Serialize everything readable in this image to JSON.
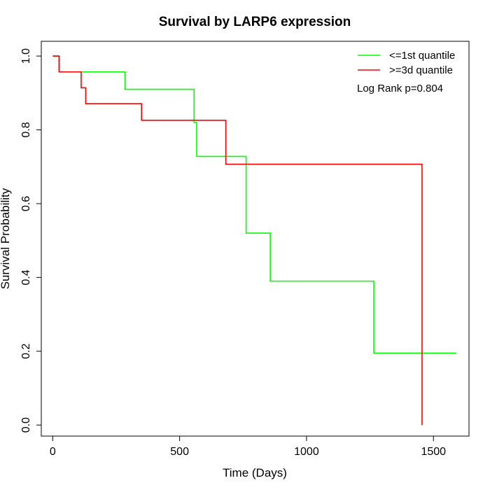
{
  "chart_data": {
    "type": "line",
    "title": "Survival by LARP6 expression",
    "xlabel": "Time (Days)",
    "ylabel": "Survival Probability",
    "xlim": [
      -45,
      1640
    ],
    "ylim": [
      -0.03,
      1.04
    ],
    "xticks": [
      0,
      500,
      1000,
      1500
    ],
    "yticks": [
      0.0,
      0.2,
      0.4,
      0.6,
      0.8,
      1.0
    ],
    "xtick_labels": [
      "0",
      "500",
      "1000",
      "1500"
    ],
    "ytick_labels": [
      "0.0",
      "0.2",
      "0.4",
      "0.6",
      "0.8",
      "1.0"
    ],
    "grid": false,
    "legend_position": "top-right",
    "annotation": "Log Rank p=0.804",
    "series": [
      {
        "name": "<=1st quantile",
        "color": "#00ff00",
        "step": "post",
        "x": [
          0,
          25,
          285,
          557,
          567,
          762,
          857,
          1265,
          1590
        ],
        "y": [
          1.0,
          0.957,
          0.91,
          0.82,
          0.728,
          0.52,
          0.39,
          0.195,
          0.195
        ]
      },
      {
        "name": ">=3d quantile",
        "color": "#ff0000",
        "step": "post",
        "x": [
          0,
          25,
          112,
          130,
          350,
          682,
          1455,
          1455
        ],
        "y": [
          1.0,
          0.957,
          0.914,
          0.871,
          0.826,
          0.707,
          0.707,
          0.0
        ]
      }
    ]
  }
}
